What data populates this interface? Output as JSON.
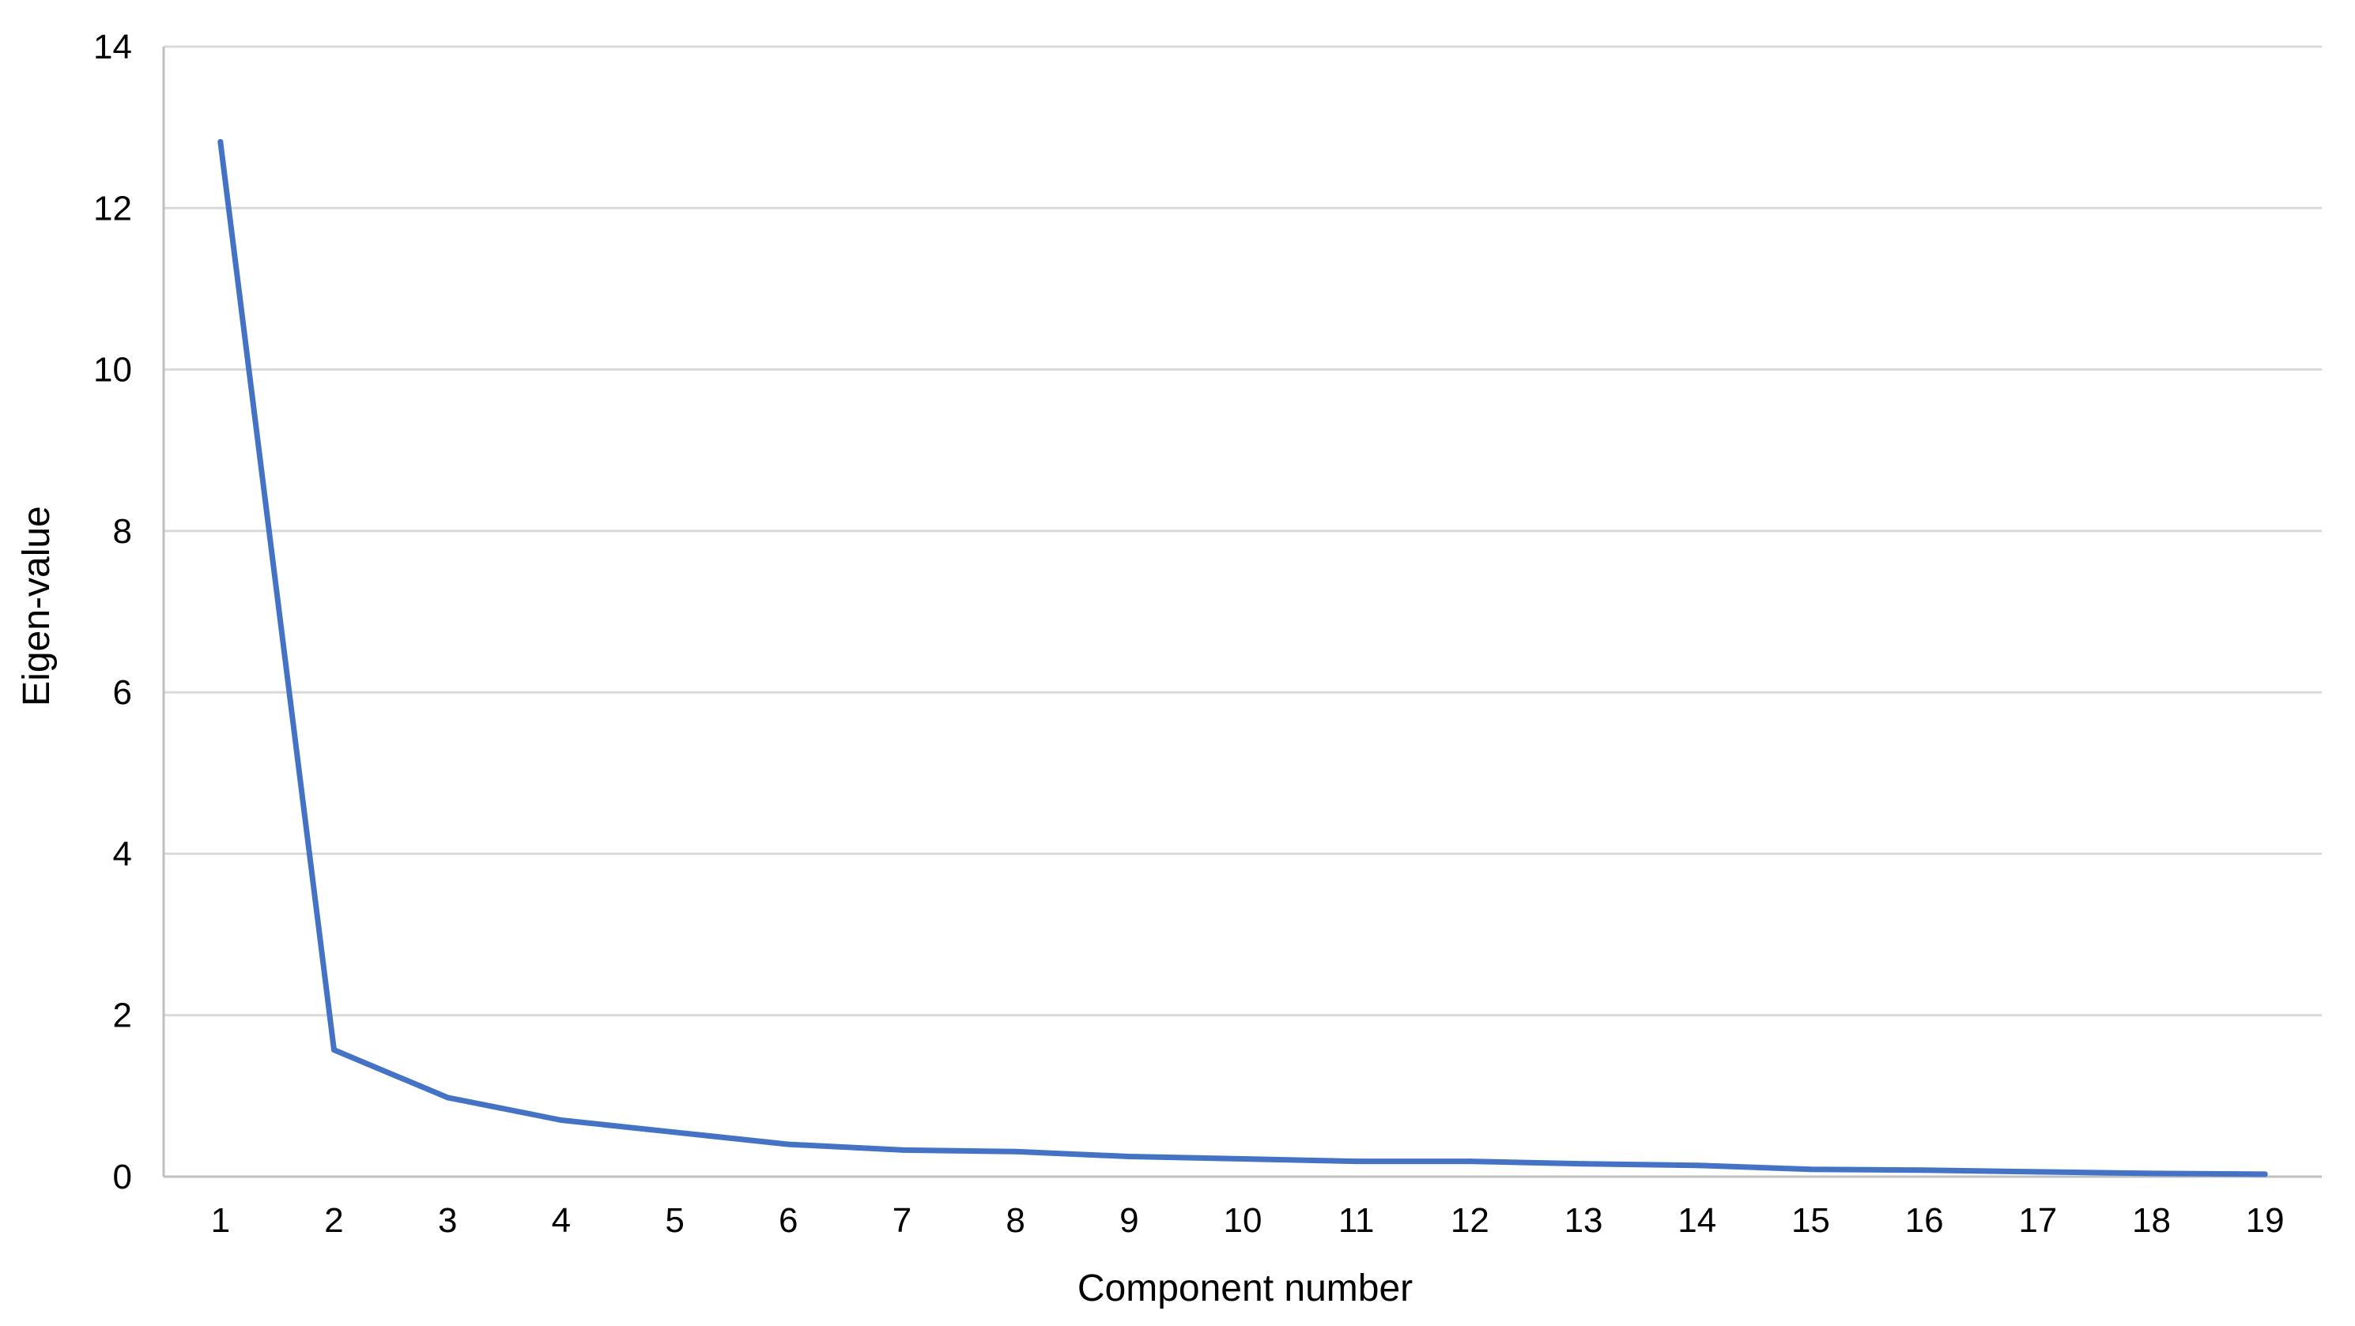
{
  "chart_data": {
    "type": "line",
    "xlabel": "Component number",
    "ylabel": "Eigen-value",
    "categories": [
      "1",
      "2",
      "3",
      "4",
      "5",
      "6",
      "7",
      "8",
      "9",
      "10",
      "11",
      "12",
      "13",
      "14",
      "15",
      "16",
      "17",
      "18",
      "19"
    ],
    "series": [
      {
        "values": [
          12.82,
          1.57,
          0.98,
          0.7,
          0.55,
          0.4,
          0.33,
          0.31,
          0.25,
          0.22,
          0.19,
          0.19,
          0.16,
          0.14,
          0.09,
          0.08,
          0.06,
          0.04,
          0.03
        ],
        "color": "#4472c4"
      }
    ],
    "ylim": [
      0,
      14
    ],
    "yticks": [
      "0",
      "2",
      "4",
      "6",
      "8",
      "10",
      "12",
      "14"
    ],
    "grid": true,
    "legend": "none"
  }
}
